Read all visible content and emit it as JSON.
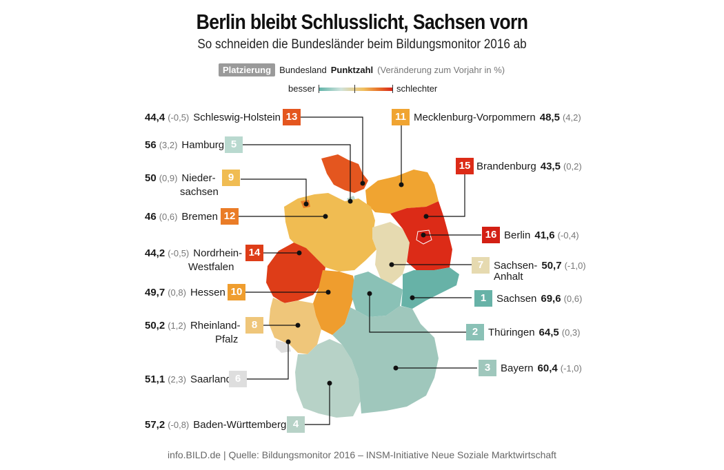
{
  "title": "Berlin bleibt Schlusslicht, Sachsen vorn",
  "subtitle": "So schneiden die Bundesländer beim Bildungsmonitor 2016 ab",
  "legend": {
    "rank_label": "Platzierung",
    "state_label": "Bundesland",
    "score_label": "Punktzahl",
    "change_label": "(Veränderung zum Vorjahr in %)",
    "better": "besser",
    "worse": "schlechter"
  },
  "colors": {
    "rank_1_5": "#5fb3a8",
    "rank_6_8": "#e8d9a8",
    "rank_9_12": "#f0a530",
    "rank_13_16": "#d8231a"
  },
  "states": {
    "sh": {
      "name": "Schleswig-Holstein",
      "rank": "13",
      "score": "44,4",
      "change": "(-0,5)",
      "color": "#e4561f"
    },
    "hh": {
      "name": "Hamburg",
      "rank": "5",
      "score": "56",
      "change": "(3,2)",
      "color": "#b9d9cf"
    },
    "ni": {
      "name_1": "Nieder-",
      "name_2": "sachsen",
      "rank": "9",
      "score": "50",
      "change": "(0,9)",
      "color": "#f0bc52"
    },
    "hb": {
      "name": "Bremen",
      "rank": "12",
      "score": "46",
      "change": "(0,6)",
      "color": "#ea7c27"
    },
    "nw": {
      "name_1": "Nordrhein-",
      "name_2": "Westfalen",
      "rank": "14",
      "score": "44,2",
      "change": "(-0,5)",
      "color": "#de3d18"
    },
    "he": {
      "name": "Hessen",
      "rank": "10",
      "score": "49,7",
      "change": "(0,8)",
      "color": "#ef9d2e"
    },
    "rp": {
      "name_1": "Rheinland-",
      "name_2": "Pfalz",
      "rank": "8",
      "score": "50,2",
      "change": "(1,2)",
      "color": "#efc67a"
    },
    "sl": {
      "name": "Saarland",
      "rank": "6",
      "score": "51,1",
      "change": "(2,3)",
      "color": "#dedede"
    },
    "bw": {
      "name": "Baden-Württemberg",
      "rank": "4",
      "score": "57,2",
      "change": "(-0,8)",
      "color": "#b7d2c7"
    },
    "mv": {
      "name": "Mecklenburg-Vorpommern",
      "rank": "11",
      "score": "48,5",
      "change": "(4,2)",
      "color": "#f0a431"
    },
    "bb": {
      "name": "Brandenburg",
      "rank": "15",
      "score": "43,5",
      "change": "(0,2)",
      "color": "#dc2b17"
    },
    "be": {
      "name": "Berlin",
      "rank": "16",
      "score": "41,6",
      "change": "(-0,4)",
      "color": "#d31f14"
    },
    "st": {
      "name_1": "Sachsen-",
      "name_2": "Anhalt",
      "rank": "7",
      "score": "50,7",
      "change": "(-1,0)",
      "color": "#e6dab0"
    },
    "sn": {
      "name": "Sachsen",
      "rank": "1",
      "score": "69,6",
      "change": "(0,6)",
      "color": "#67b2a7"
    },
    "th": {
      "name": "Thüringen",
      "rank": "2",
      "score": "64,5",
      "change": "(0,3)",
      "color": "#8ac1b6"
    },
    "by": {
      "name": "Bayern",
      "rank": "3",
      "score": "60,4",
      "change": "(-1,0)",
      "color": "#9fc7bc"
    }
  },
  "footer": "info.BILD.de | Quelle: Bildungsmonitor 2016 – INSM-Initiative Neue Soziale Marktwirtschaft"
}
